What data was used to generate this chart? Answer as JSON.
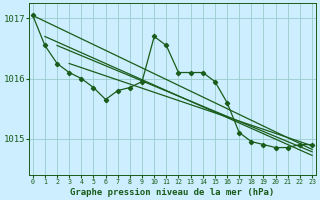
{
  "xlabel": "Graphe pression niveau de la mer (hPa)",
  "background_color": "#cceeff",
  "grid_color": "#99cccc",
  "line_color": "#1a5c1a",
  "ylim": [
    1014.4,
    1017.25
  ],
  "xlim": [
    -0.3,
    23.3
  ],
  "yticks": [
    1015,
    1016,
    1017
  ],
  "ytick_labels": [
    "1015",
    "1016",
    "1017"
  ],
  "xticks": [
    0,
    1,
    2,
    3,
    4,
    5,
    6,
    7,
    8,
    9,
    10,
    11,
    12,
    13,
    14,
    15,
    16,
    17,
    18,
    19,
    20,
    21,
    22,
    23
  ],
  "main_line": [
    1017.05,
    1016.55,
    1016.25,
    1016.1,
    1016.0,
    1015.85,
    1015.65,
    1015.8,
    1015.85,
    1015.95,
    1016.7,
    1016.55,
    1016.1,
    1016.1,
    1016.1,
    1015.95,
    1015.6,
    1015.1,
    1014.95,
    1014.9,
    1014.85,
    1014.85,
    1014.9,
    1014.9
  ],
  "straight_line1": [
    1017.05,
    1014.82
  ],
  "straight_line2": [
    1016.7,
    1014.72
  ],
  "straight_line3": [
    1016.55,
    1014.78
  ],
  "straight_line4": [
    1016.25,
    1014.88
  ]
}
